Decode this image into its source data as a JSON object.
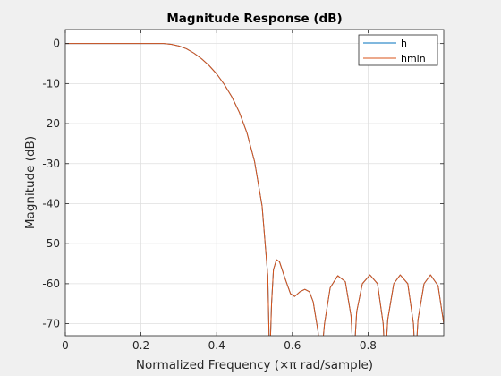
{
  "chart_data": {
    "type": "line",
    "title": "Magnitude Response (dB)",
    "xlabel": "Normalized Frequency (×π rad/sample)",
    "ylabel": "Magnitude (dB)",
    "xlim": [
      0,
      1
    ],
    "ylim": [
      -73,
      3.5
    ],
    "xticks": [
      0,
      0.2,
      0.4,
      0.6,
      0.8
    ],
    "xtick_labels": [
      "0",
      "0.2",
      "0.4",
      "0.6",
      "0.8"
    ],
    "yticks": [
      0,
      -10,
      -20,
      -30,
      -40,
      -50,
      -60,
      -70
    ],
    "ytick_labels": [
      "0",
      "-10",
      "-20",
      "-30",
      "-40",
      "-50",
      "-60",
      "-70"
    ],
    "grid": true,
    "legend_position": "top-right",
    "series": [
      {
        "name": "h",
        "color": "#0072BD",
        "points": [
          [
            0,
            0
          ],
          [
            0.1,
            0
          ],
          [
            0.2,
            0
          ],
          [
            0.26,
            0
          ],
          [
            0.28,
            -0.2
          ],
          [
            0.3,
            -0.6
          ],
          [
            0.32,
            -1.3
          ],
          [
            0.34,
            -2.4
          ],
          [
            0.36,
            -3.8
          ],
          [
            0.38,
            -5.5
          ],
          [
            0.4,
            -7.6
          ],
          [
            0.42,
            -10.2
          ],
          [
            0.44,
            -13.3
          ],
          [
            0.46,
            -17.2
          ],
          [
            0.48,
            -22.3
          ],
          [
            0.5,
            -29.4
          ],
          [
            0.52,
            -40.6
          ],
          [
            0.535,
            -58
          ],
          [
            0.54,
            -80
          ],
          [
            0.545,
            -65
          ],
          [
            0.55,
            -56.5
          ],
          [
            0.558,
            -54
          ],
          [
            0.566,
            -54.5
          ],
          [
            0.58,
            -58.5
          ],
          [
            0.595,
            -62.5
          ],
          [
            0.606,
            -63.2
          ],
          [
            0.62,
            -62
          ],
          [
            0.633,
            -61.4
          ],
          [
            0.645,
            -62
          ],
          [
            0.655,
            -64.5
          ],
          [
            0.668,
            -72
          ],
          [
            0.675,
            -80
          ],
          [
            0.685,
            -70
          ],
          [
            0.7,
            -61
          ],
          [
            0.72,
            -58
          ],
          [
            0.74,
            -59.5
          ],
          [
            0.755,
            -68
          ],
          [
            0.762,
            -80
          ],
          [
            0.77,
            -67
          ],
          [
            0.785,
            -60
          ],
          [
            0.805,
            -57.8
          ],
          [
            0.825,
            -60
          ],
          [
            0.84,
            -70
          ],
          [
            0.845,
            -80
          ],
          [
            0.852,
            -69
          ],
          [
            0.868,
            -60
          ],
          [
            0.885,
            -57.8
          ],
          [
            0.905,
            -60
          ],
          [
            0.92,
            -70
          ],
          [
            0.925,
            -80
          ],
          [
            0.932,
            -69
          ],
          [
            0.948,
            -60
          ],
          [
            0.965,
            -57.8
          ],
          [
            0.985,
            -60.5
          ],
          [
            1.0,
            -70
          ]
        ]
      },
      {
        "name": "hmin",
        "color": "#D95319",
        "points": [
          [
            0,
            0
          ],
          [
            0.1,
            0
          ],
          [
            0.2,
            0
          ],
          [
            0.26,
            0
          ],
          [
            0.28,
            -0.2
          ],
          [
            0.3,
            -0.6
          ],
          [
            0.32,
            -1.3
          ],
          [
            0.34,
            -2.4
          ],
          [
            0.36,
            -3.8
          ],
          [
            0.38,
            -5.5
          ],
          [
            0.4,
            -7.6
          ],
          [
            0.42,
            -10.2
          ],
          [
            0.44,
            -13.3
          ],
          [
            0.46,
            -17.2
          ],
          [
            0.48,
            -22.3
          ],
          [
            0.5,
            -29.4
          ],
          [
            0.52,
            -40.6
          ],
          [
            0.535,
            -58
          ],
          [
            0.54,
            -80
          ],
          [
            0.545,
            -65
          ],
          [
            0.55,
            -56.5
          ],
          [
            0.558,
            -54
          ],
          [
            0.566,
            -54.5
          ],
          [
            0.58,
            -58.5
          ],
          [
            0.595,
            -62.5
          ],
          [
            0.606,
            -63.2
          ],
          [
            0.62,
            -62
          ],
          [
            0.633,
            -61.4
          ],
          [
            0.645,
            -62
          ],
          [
            0.655,
            -64.5
          ],
          [
            0.668,
            -72
          ],
          [
            0.675,
            -80
          ],
          [
            0.685,
            -70
          ],
          [
            0.7,
            -61
          ],
          [
            0.72,
            -58
          ],
          [
            0.74,
            -59.5
          ],
          [
            0.755,
            -68
          ],
          [
            0.762,
            -80
          ],
          [
            0.77,
            -67
          ],
          [
            0.785,
            -60
          ],
          [
            0.805,
            -57.8
          ],
          [
            0.825,
            -60
          ],
          [
            0.84,
            -70
          ],
          [
            0.845,
            -80
          ],
          [
            0.852,
            -69
          ],
          [
            0.868,
            -60
          ],
          [
            0.885,
            -57.8
          ],
          [
            0.905,
            -60
          ],
          [
            0.92,
            -70
          ],
          [
            0.925,
            -80
          ],
          [
            0.932,
            -69
          ],
          [
            0.948,
            -60
          ],
          [
            0.965,
            -57.8
          ],
          [
            0.985,
            -60.5
          ],
          [
            1.0,
            -70
          ]
        ]
      }
    ]
  }
}
